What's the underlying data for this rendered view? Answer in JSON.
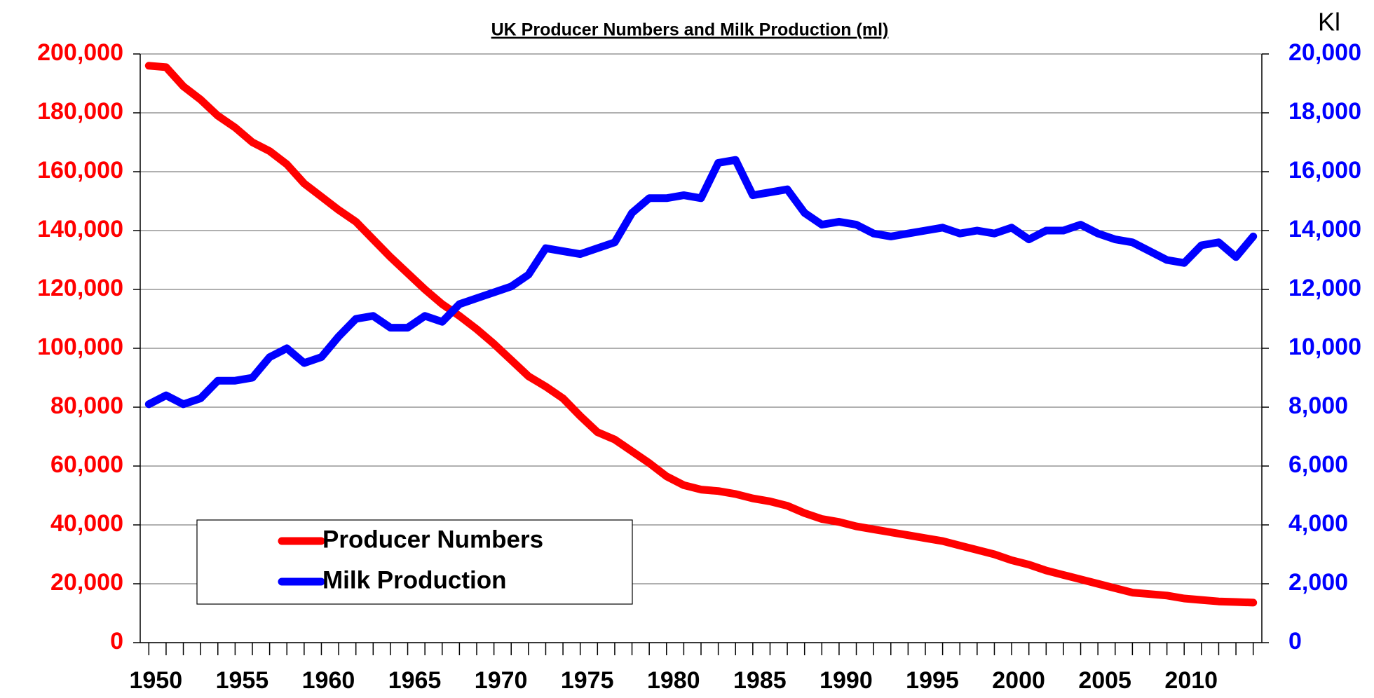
{
  "chart_data": {
    "type": "line",
    "title": "UK Producer Numbers and Milk Production (ml)",
    "y2_unit_label": "Kl",
    "x": [
      1950,
      1951,
      1952,
      1953,
      1954,
      1955,
      1956,
      1957,
      1958,
      1959,
      1960,
      1961,
      1962,
      1963,
      1964,
      1965,
      1966,
      1967,
      1968,
      1969,
      1970,
      1971,
      1972,
      1973,
      1974,
      1975,
      1976,
      1977,
      1978,
      1979,
      1980,
      1981,
      1982,
      1983,
      1984,
      1985,
      1986,
      1987,
      1988,
      1989,
      1990,
      1991,
      1992,
      1993,
      1994,
      1995,
      1996,
      1997,
      1998,
      1999,
      2000,
      2001,
      2002,
      2003,
      2004,
      2005,
      2006,
      2007,
      2008,
      2009,
      2010,
      2011,
      2012,
      2013,
      2014
    ],
    "xlim": [
      1949.5,
      2014.5
    ],
    "xticks": [
      1950,
      1955,
      1960,
      1965,
      1970,
      1975,
      1980,
      1985,
      1990,
      1995,
      2000,
      2005,
      2010
    ],
    "ylim": [
      0,
      200000
    ],
    "yticks": [
      {
        "value": 0,
        "label": "0"
      },
      {
        "value": 20000,
        "label": "20,000"
      },
      {
        "value": 40000,
        "label": "40,000"
      },
      {
        "value": 60000,
        "label": "60,000"
      },
      {
        "value": 80000,
        "label": "80,000"
      },
      {
        "value": 100000,
        "label": "100,000"
      },
      {
        "value": 120000,
        "label": "120,000"
      },
      {
        "value": 140000,
        "label": "140,000"
      },
      {
        "value": 160000,
        "label": "160,000"
      },
      {
        "value": 180000,
        "label": "180,000"
      },
      {
        "value": 200000,
        "label": "200,000"
      }
    ],
    "y2lim": [
      0,
      20000
    ],
    "y2ticks": [
      {
        "value": 0,
        "label": "0"
      },
      {
        "value": 2000,
        "label": "2,000"
      },
      {
        "value": 4000,
        "label": "4,000"
      },
      {
        "value": 6000,
        "label": "6,000"
      },
      {
        "value": 8000,
        "label": "8,000"
      },
      {
        "value": 10000,
        "label": "10,000"
      },
      {
        "value": 12000,
        "label": "12,000"
      },
      {
        "value": 14000,
        "label": "14,000"
      },
      {
        "value": 16000,
        "label": "16,000"
      },
      {
        "value": 18000,
        "label": "18,000"
      },
      {
        "value": 20000,
        "label": "20,000"
      }
    ],
    "grid": true,
    "series": [
      {
        "name": "Producer Numbers",
        "color": "#ff0000",
        "axis": "y",
        "values": [
          196000,
          195500,
          189000,
          184500,
          179000,
          175000,
          170000,
          167000,
          162500,
          156000,
          151500,
          147000,
          143000,
          137000,
          131000,
          125500,
          120000,
          115000,
          111000,
          106500,
          101500,
          96000,
          90500,
          87000,
          83000,
          77000,
          71500,
          69000,
          65000,
          61000,
          56500,
          53500,
          52000,
          51500,
          50500,
          49000,
          48000,
          46500,
          44000,
          42000,
          41000,
          39500,
          38500,
          37500,
          36500,
          35500,
          34500,
          33000,
          31500,
          30000,
          28000,
          26500,
          24500,
          23000,
          21500,
          20000,
          18500,
          17000,
          16500,
          16000,
          15000,
          14500,
          14000,
          13800,
          13600
        ]
      },
      {
        "name": "Milk Production",
        "color": "#0000ff",
        "axis": "y2",
        "values": [
          8100,
          8400,
          8100,
          8300,
          8900,
          8900,
          9000,
          9700,
          10000,
          9500,
          9700,
          10400,
          11000,
          11100,
          10700,
          10700,
          11100,
          10900,
          11500,
          11700,
          11900,
          12100,
          12500,
          13400,
          13300,
          13200,
          13400,
          13600,
          14600,
          15100,
          15100,
          15200,
          15100,
          16300,
          16400,
          15200,
          15300,
          15400,
          14600,
          14200,
          14300,
          14200,
          13900,
          13800,
          13900,
          14000,
          14100,
          13900,
          14000,
          13900,
          14100,
          13700,
          14000,
          14000,
          14200,
          13900,
          13700,
          13600,
          13300,
          13000,
          12900,
          13500,
          13600,
          13100,
          13800
        ]
      }
    ]
  }
}
